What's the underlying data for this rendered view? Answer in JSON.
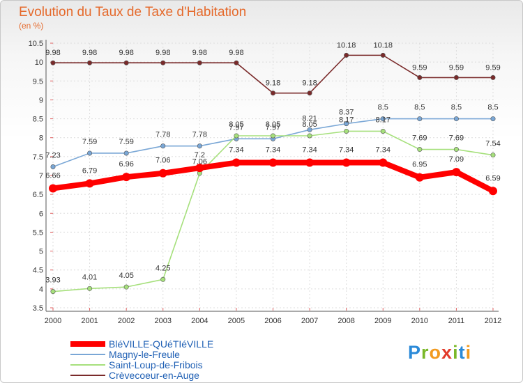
{
  "title": "Evolution du Taux de Taxe d'Habitation",
  "subtitle": "(en %)",
  "logo": {
    "letters": [
      "P",
      "r",
      "o",
      "x",
      "i",
      "t",
      "i"
    ],
    "colors": [
      "#2b8ad8",
      "#7ab828",
      "#f29a1f",
      "#e23a2a",
      "#7ab828",
      "#2b8ad8",
      "#f29a1f"
    ]
  },
  "chart_data": {
    "type": "line",
    "title": "Evolution du Taux de Taxe d'Habitation",
    "subtitle": "(en %)",
    "xlabel": "",
    "ylabel": "",
    "x": [
      "2000",
      "2001",
      "2002",
      "2003",
      "2004",
      "2005",
      "2006",
      "2007",
      "2008",
      "2009",
      "2010",
      "2011",
      "2012"
    ],
    "ylim": [
      3.5,
      10.5
    ],
    "yticks": [
      "3.5",
      "4",
      "4.5",
      "5",
      "5.5",
      "6",
      "6.5",
      "7",
      "7.5",
      "8",
      "8.5",
      "9",
      "9.5",
      "10",
      "10.5"
    ],
    "grid": true,
    "legend_position": "bottom-left",
    "series": [
      {
        "name": "BléVILLE-QUéTIéVILLE",
        "color": "#ff0000",
        "values": [
          6.66,
          6.79,
          6.96,
          7.06,
          7.2,
          7.34,
          7.34,
          7.34,
          7.34,
          7.34,
          6.95,
          7.09,
          6.59
        ],
        "labels": [
          "6.66",
          "6.79",
          "6.96",
          "7.06",
          "7.2",
          "7.34",
          "7.34",
          "7.34",
          "7.34",
          "7.34",
          "6.95",
          "7.09",
          "6.59"
        ]
      },
      {
        "name": "Magny-le-Freule",
        "color": "#7aa7d6",
        "values": [
          7.23,
          7.59,
          7.59,
          7.78,
          7.78,
          7.97,
          7.97,
          8.21,
          8.37,
          8.5,
          8.5,
          8.5,
          8.5
        ],
        "labels": [
          "7.23",
          "7.59",
          "7.59",
          "7.78",
          "7.78",
          "7.97",
          "7.97",
          "8.21",
          "8.37",
          "8.5",
          "8.5",
          "8.5",
          "8.5"
        ]
      },
      {
        "name": "Saint-Loup-de-Fribois",
        "color": "#a6e07c",
        "values": [
          3.93,
          4.01,
          4.05,
          4.25,
          7.06,
          8.05,
          8.05,
          8.05,
          8.17,
          8.17,
          7.69,
          7.69,
          7.54
        ],
        "labels": [
          "3.93",
          "4.01",
          "4.05",
          "4.25",
          "7.06",
          "8.05",
          "8.05",
          "8.05",
          "8.17",
          "8.17",
          "7.69",
          "7.69",
          "7.54"
        ]
      },
      {
        "name": "Crèvecoeur-en-Auge",
        "color": "#7a2a2a",
        "values": [
          9.98,
          9.98,
          9.98,
          9.98,
          9.98,
          9.98,
          9.18,
          9.18,
          10.18,
          10.18,
          9.59,
          9.59,
          9.59
        ],
        "labels": [
          "9.98",
          "9.98",
          "9.98",
          "9.98",
          "9.98",
          "9.98",
          "9.18",
          "9.18",
          "10.18",
          "10.18",
          "9.59",
          "9.59",
          "9.59"
        ]
      }
    ]
  }
}
